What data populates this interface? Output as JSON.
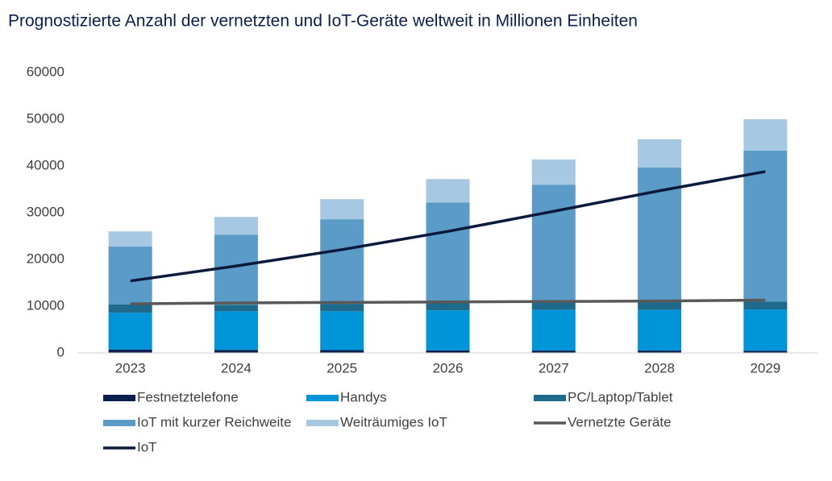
{
  "chart_data": {
    "type": "bar",
    "stacked": true,
    "title": "Prognostizierte Anzahl der vernetzten und IoT-Geräte weltweit in Millionen Einheiten",
    "categories": [
      "2023",
      "2024",
      "2025",
      "2026",
      "2027",
      "2028",
      "2029"
    ],
    "series": [
      {
        "name": "Festnetztelefone",
        "color": "#0b1f4f",
        "values": [
          700,
          650,
          600,
          550,
          500,
          500,
          450
        ]
      },
      {
        "name": "Handys",
        "color": "#0095d9",
        "values": [
          7900,
          8250,
          8300,
          8550,
          8700,
          8700,
          8850
        ]
      },
      {
        "name": "PC/Laptop/Tablet",
        "color": "#1d6a8d",
        "values": [
          1750,
          1400,
          1600,
          1600,
          1700,
          1700,
          1700
        ]
      },
      {
        "name": "IoT mit kurzer Reichweite",
        "color": "#5b9bc8",
        "values": [
          12400,
          15000,
          18100,
          21500,
          25100,
          28800,
          32300
        ]
      },
      {
        "name": "Weiträumiges IoT",
        "color": "#a6c8e2",
        "values": [
          3250,
          3800,
          4300,
          5000,
          5400,
          6000,
          6700
        ]
      },
      {
        "name": "Vernetzte Geräte",
        "color": "#595959",
        "kind": "line",
        "values": [
          10500,
          10700,
          10800,
          10900,
          11000,
          11100,
          11300
        ]
      },
      {
        "name": "IoT",
        "color": "#0b1a3c",
        "kind": "line",
        "values": [
          15400,
          18600,
          22100,
          26000,
          30300,
          34700,
          38800
        ]
      }
    ],
    "ylim": [
      0,
      60000
    ],
    "yticks": [
      0,
      10000,
      20000,
      30000,
      40000,
      50000,
      60000
    ],
    "grid": false
  }
}
